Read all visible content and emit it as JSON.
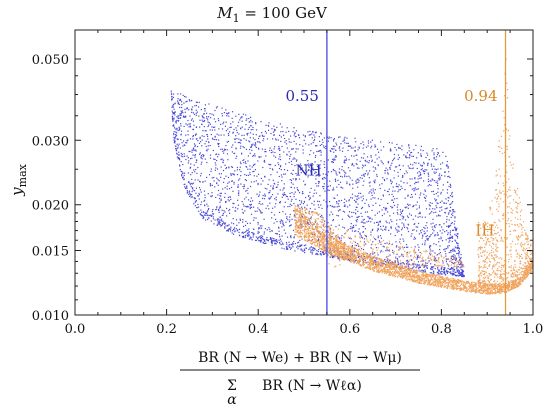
{
  "chart_data": {
    "type": "scatter",
    "title": "M₁ = 100 GeV",
    "title_parts": {
      "var": "M",
      "sub": "1",
      "rest": " = 100 GeV"
    },
    "ylabel": {
      "var": "y",
      "sub": "max"
    },
    "xlabel": {
      "numerator": "BR (N → We) + BR (N → Wμ)",
      "denominator_sum": "Σ",
      "denominator_sum_index": "α",
      "denominator": "BR (N → Wℓα)"
    },
    "xlim": [
      0.0,
      1.0
    ],
    "ylim": [
      0.01,
      0.06
    ],
    "yscale": "log",
    "xticks": [
      "0.0",
      "0.2",
      "0.4",
      "0.6",
      "0.8",
      "1.0"
    ],
    "yticks": [
      {
        "value": 0.01,
        "label": "0.010"
      },
      {
        "value": 0.015,
        "label": "0.015"
      },
      {
        "value": 0.02,
        "label": "0.020"
      },
      {
        "value": 0.03,
        "label": "0.030"
      },
      {
        "value": 0.05,
        "label": "0.050"
      }
    ],
    "series": [
      {
        "name": "NH",
        "color": "#4b4bd9",
        "region": {
          "upper": [
            [
              0.21,
              0.041
            ],
            [
              0.3,
              0.0375
            ],
            [
              0.4,
              0.0345
            ],
            [
              0.5,
              0.032
            ],
            [
              0.6,
              0.0305
            ],
            [
              0.7,
              0.0295
            ],
            [
              0.81,
              0.0285
            ]
          ],
          "lower": [
            [
              0.21,
              0.041
            ],
            [
              0.215,
              0.03
            ],
            [
              0.24,
              0.022
            ],
            [
              0.28,
              0.0183
            ],
            [
              0.35,
              0.0165
            ],
            [
              0.45,
              0.0152
            ],
            [
              0.55,
              0.0144
            ],
            [
              0.65,
              0.0137
            ],
            [
              0.75,
              0.0131
            ],
            [
              0.85,
              0.0127
            ]
          ],
          "right_edge": [
            [
              0.81,
              0.0285
            ],
            [
              0.81,
              0.018
            ],
            [
              0.85,
              0.0127
            ]
          ]
        },
        "label": {
          "text": "NH",
          "x": 0.51,
          "y": 0.024
        }
      },
      {
        "name": "IH",
        "color": "#f0a35c",
        "region": {
          "band_upper": [
            [
              0.48,
              0.02
            ],
            [
              0.55,
              0.0165
            ],
            [
              0.65,
              0.0145
            ],
            [
              0.75,
              0.0132
            ],
            [
              0.85,
              0.0124
            ],
            [
              0.93,
              0.012
            ],
            [
              0.97,
              0.0125
            ],
            [
              1.0,
              0.014
            ]
          ],
          "band_lower": [
            [
              0.48,
              0.0165
            ],
            [
              0.55,
              0.0148
            ],
            [
              0.65,
              0.0132
            ],
            [
              0.75,
              0.0122
            ],
            [
              0.85,
              0.0116
            ],
            [
              0.9,
              0.0114
            ],
            [
              0.94,
              0.0115
            ],
            [
              0.97,
              0.012
            ],
            [
              1.0,
              0.0133
            ]
          ],
          "spike": [
            [
              0.9,
              0.018
            ],
            [
              0.92,
              0.025
            ],
            [
              0.935,
              0.04
            ],
            [
              0.94,
              0.06
            ],
            [
              0.945,
              0.04
            ],
            [
              0.96,
              0.025
            ],
            [
              0.98,
              0.018
            ],
            [
              1.0,
              0.015
            ]
          ],
          "wing": [
            [
              0.48,
              0.02
            ],
            [
              0.54,
              0.019
            ],
            [
              0.56,
              0.017
            ],
            [
              0.59,
              0.0155
            ]
          ]
        },
        "label": {
          "text": "IH",
          "x": 0.895,
          "y": 0.0165
        }
      }
    ],
    "vlines": [
      {
        "x": 0.55,
        "color": "#4848e0",
        "label": "0.55"
      },
      {
        "x": 0.94,
        "color": "#e59a40",
        "label": "0.94"
      }
    ],
    "grid": false,
    "legend": "none"
  }
}
